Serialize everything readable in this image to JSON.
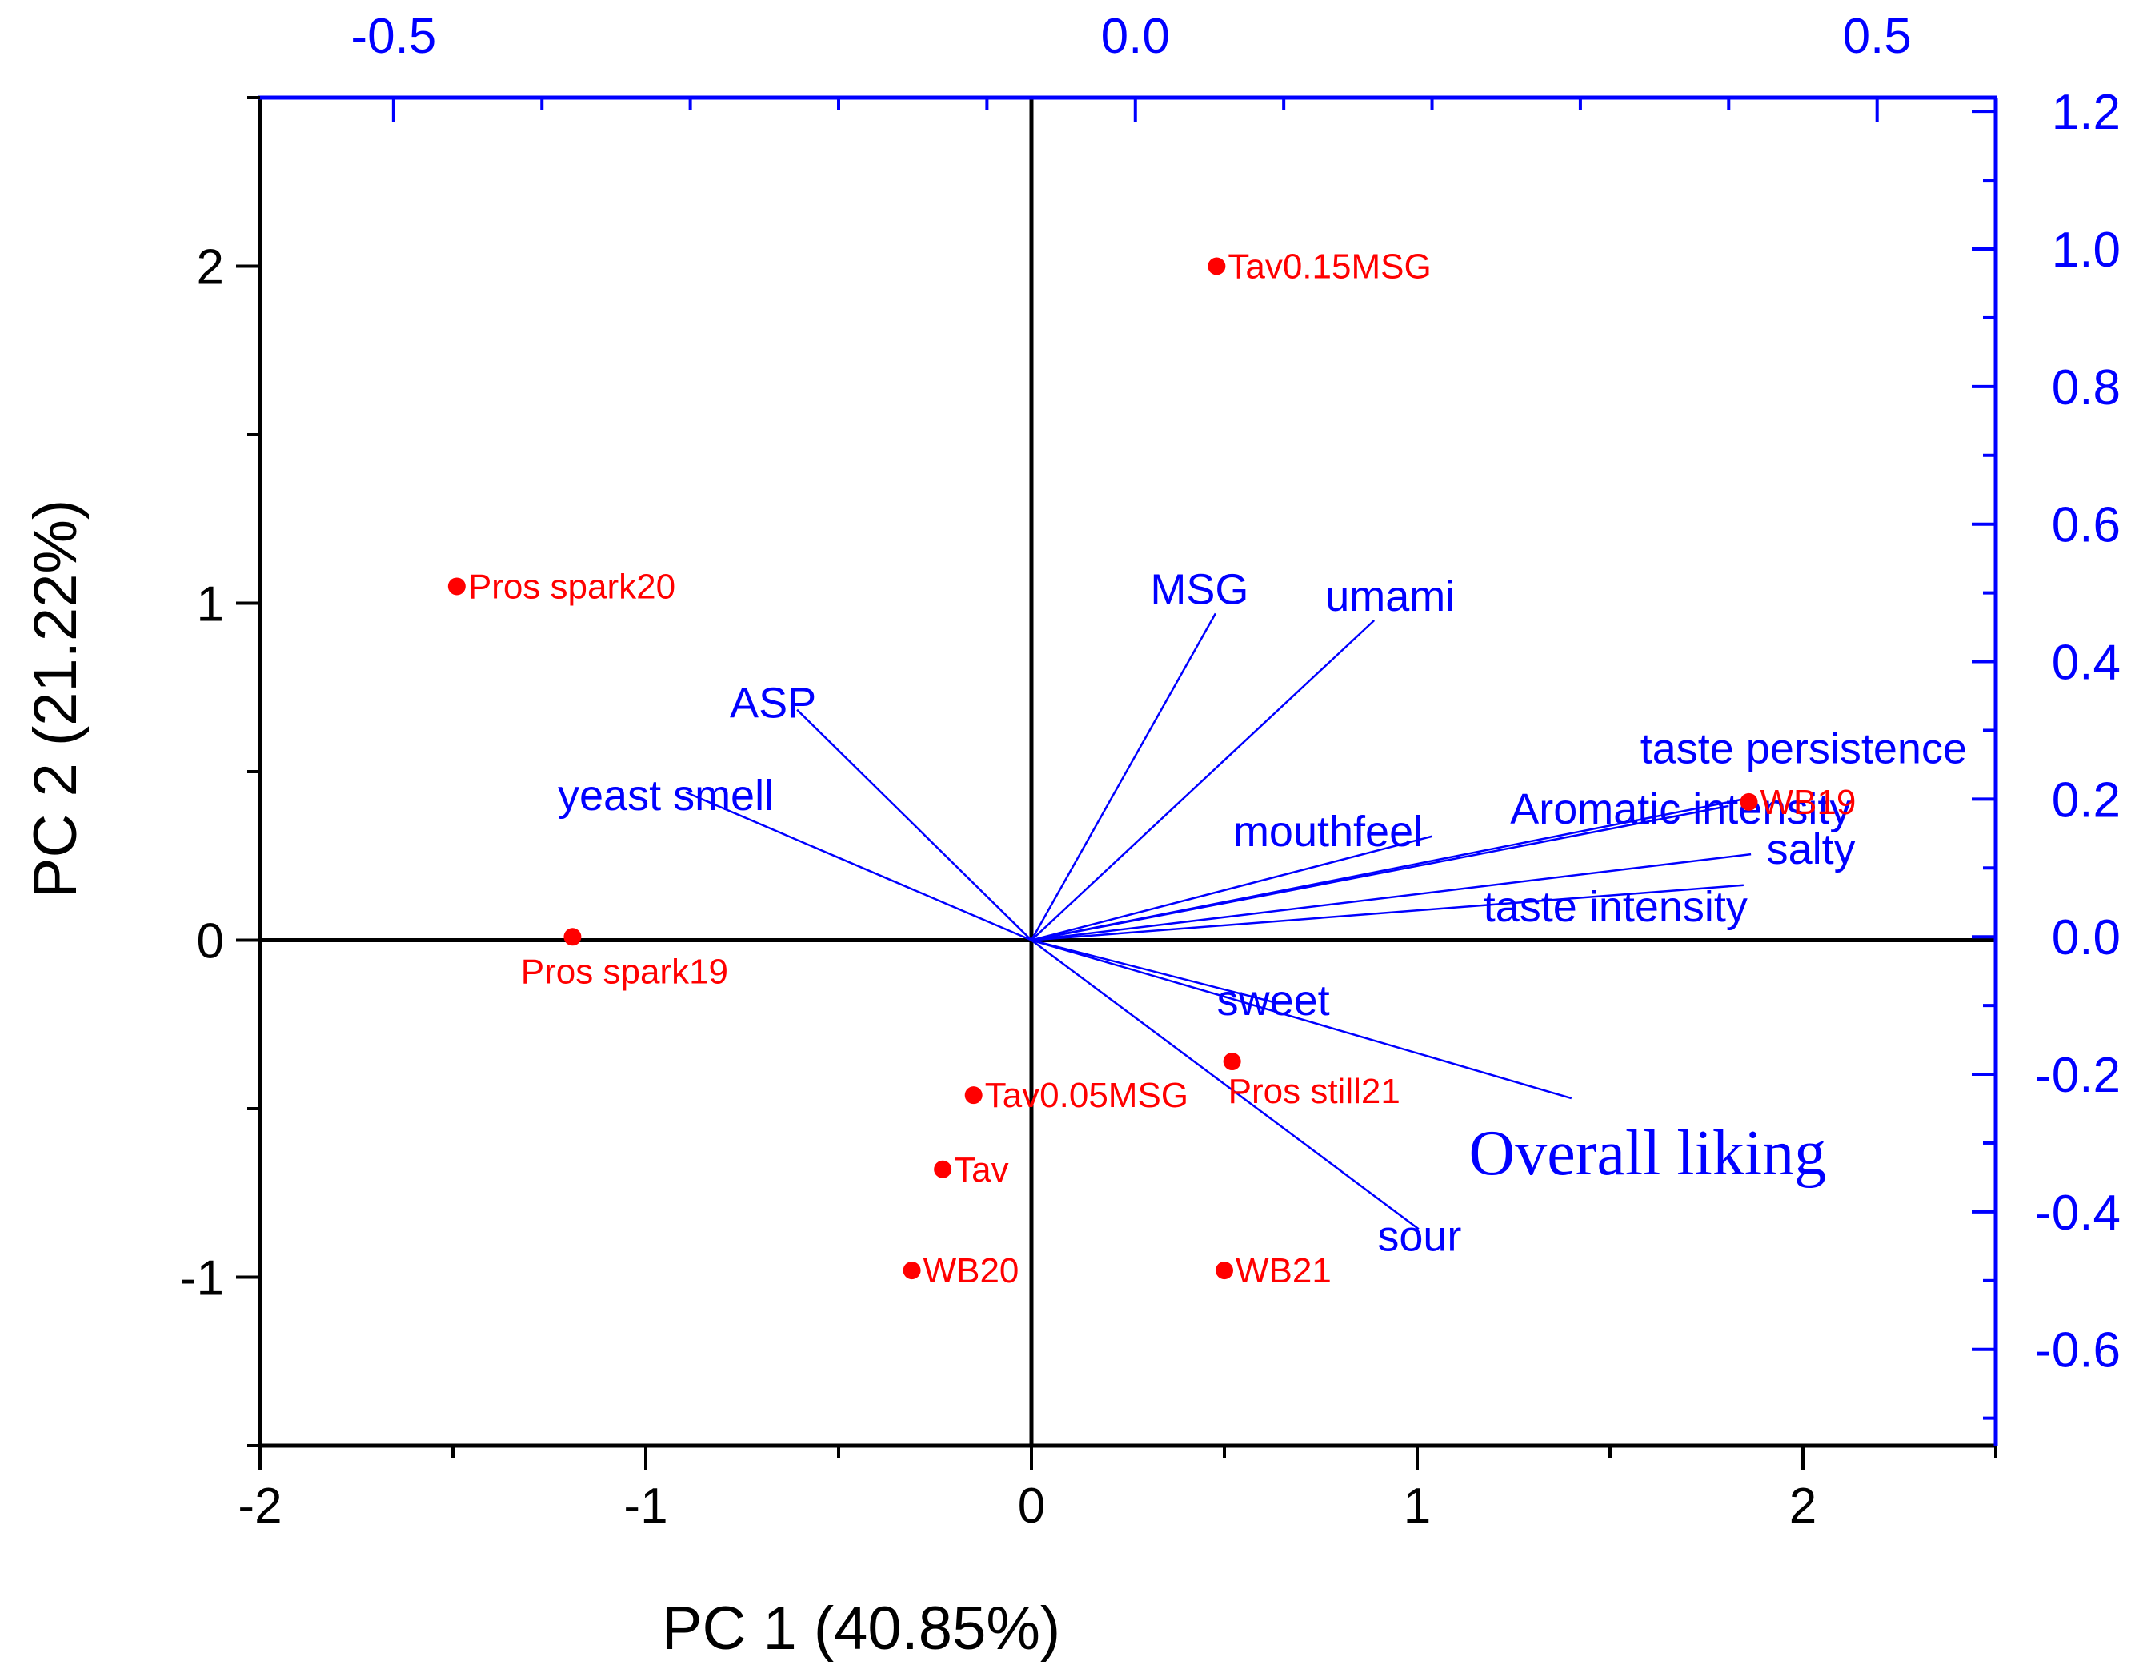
{
  "chart_data": {
    "type": "scatter",
    "subtype": "pca-biplot",
    "title": "",
    "xlabel": "PC 1 (40.85%)",
    "ylabel": "PC 2 (21.22%)",
    "xlim": [
      -2,
      2.5
    ],
    "ylim": [
      -1.5,
      2.5
    ],
    "x_ticks": [
      -2,
      -1,
      0,
      1,
      2
    ],
    "y_ticks": [
      -1,
      0,
      1,
      2
    ],
    "top_axis": {
      "lim": [
        -0.59,
        0.58
      ],
      "ticks": [
        -0.5,
        0.0,
        0.5
      ],
      "tick_labels": [
        "-0.5",
        "0.0",
        "0.5"
      ]
    },
    "right_axis": {
      "lim": [
        -0.74,
        1.22
      ],
      "ticks": [
        -0.6,
        -0.4,
        -0.2,
        0.0,
        0.2,
        0.4,
        0.6,
        0.8,
        1.0,
        1.2
      ],
      "tick_labels": [
        "-0.6",
        "-0.4",
        "-0.2",
        "0.0",
        "0.2",
        "0.4",
        "0.6",
        "0.8",
        "1.0",
        "1.2"
      ]
    },
    "colors": {
      "scores": "#ff0000",
      "loadings": "#0000ff",
      "axes": "#000000"
    },
    "scores": [
      {
        "name": "Tav0.15MSG",
        "x": 0.48,
        "y": 2.0
      },
      {
        "name": "Pros spark20",
        "x": -1.49,
        "y": 1.05
      },
      {
        "name": "WB19",
        "x": 1.86,
        "y": 0.41
      },
      {
        "name": "Pros spark19",
        "x": -1.19,
        "y": 0.01
      },
      {
        "name": "Pros still21",
        "x": 0.52,
        "y": -0.36
      },
      {
        "name": "Tav0.05MSG",
        "x": -0.15,
        "y": -0.46
      },
      {
        "name": "Tav",
        "x": -0.23,
        "y": -0.68
      },
      {
        "name": "WB20",
        "x": -0.31,
        "y": -0.98
      },
      {
        "name": "WB21",
        "x": 0.5,
        "y": -0.98
      }
    ],
    "loadings": [
      {
        "name": "MSG",
        "x": 0.054,
        "y": 0.47
      },
      {
        "name": "umami",
        "x": 0.161,
        "y": 0.46
      },
      {
        "name": "ASP",
        "x": -0.228,
        "y": 0.33
      },
      {
        "name": "yeast smell",
        "x": -0.303,
        "y": 0.21
      },
      {
        "name": "mouthfeel",
        "x": 0.2,
        "y": 0.146
      },
      {
        "name": "Aromatic intensity",
        "x": 0.4,
        "y": 0.19
      },
      {
        "name": "taste persistence",
        "x": 0.41,
        "y": 0.2
      },
      {
        "name": "salty",
        "x": 0.415,
        "y": 0.12
      },
      {
        "name": "taste intensity",
        "x": 0.41,
        "y": 0.075
      },
      {
        "name": "sweet",
        "x": 0.093,
        "y": -0.095
      },
      {
        "name": "Overall liking",
        "x": 0.294,
        "y": -0.235
      },
      {
        "name": "sour",
        "x": 0.191,
        "y": -0.425
      }
    ]
  }
}
